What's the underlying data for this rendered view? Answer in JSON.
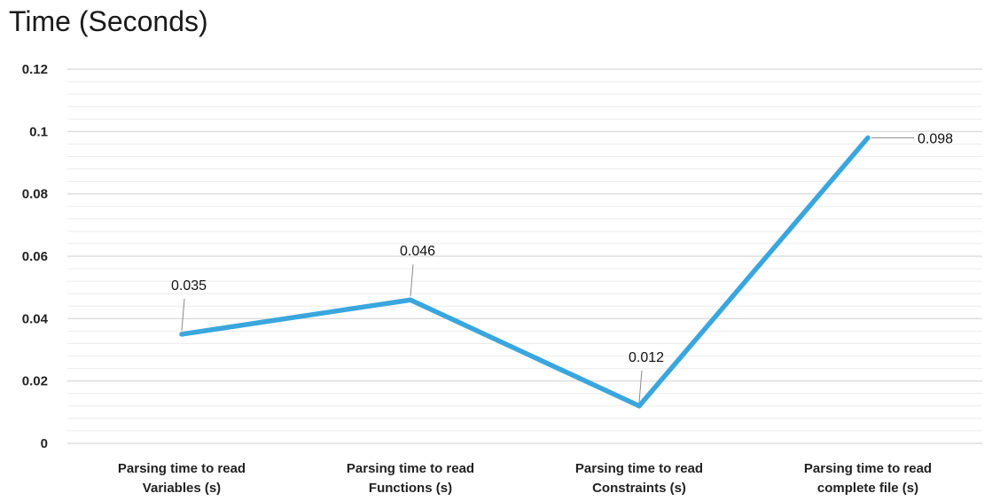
{
  "chart_data": {
    "type": "line",
    "title": "Time (Seconds)",
    "xlabel": "",
    "ylabel": "",
    "categories": [
      [
        "Parsing time to read",
        "Variables (s)"
      ],
      [
        "Parsing time to read",
        "Functions (s)"
      ],
      [
        "Parsing time to read",
        "Constraints (s)"
      ],
      [
        "Parsing time to read",
        "complete file (s)"
      ]
    ],
    "series": [
      {
        "values": [
          0.035,
          0.046,
          0.012,
          0.098
        ],
        "data_labels": [
          "0.035",
          "0.046",
          "0.012",
          "0.098"
        ],
        "color": "#3aa6dd"
      }
    ],
    "ylim": [
      0,
      0.12
    ],
    "yticks": [
      "0",
      "0.02",
      "0.04",
      "0.06",
      "0.08",
      "0.1",
      "0.12"
    ],
    "grid": true,
    "legend": "none"
  },
  "colors": {
    "line": "#3aa6dd",
    "grid": "#e2e2e2",
    "leader": "#8a8a8a"
  }
}
